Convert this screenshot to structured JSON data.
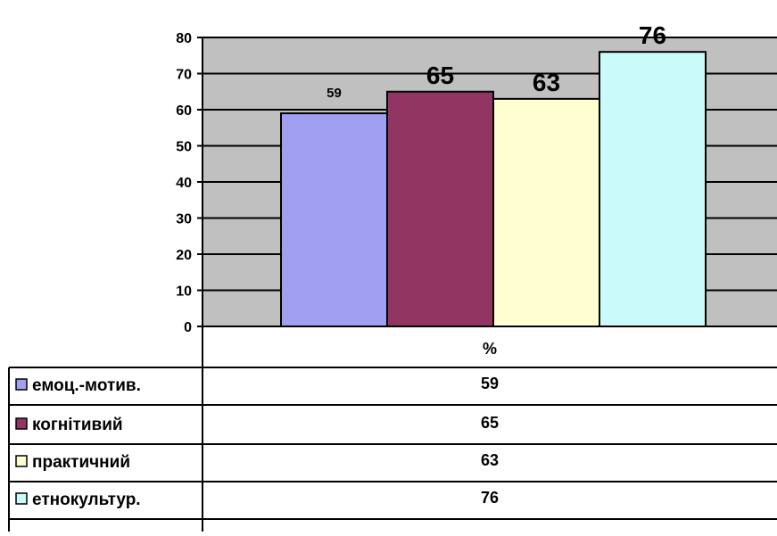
{
  "chart_data": {
    "type": "bar",
    "categories": [
      "%"
    ],
    "series": [
      {
        "name": "емоц.-мотив.",
        "values": [
          59
        ],
        "color": "#A09FF0"
      },
      {
        "name": "когнітивий",
        "values": [
          65
        ],
        "color": "#923562"
      },
      {
        "name": "практичний",
        "values": [
          63
        ],
        "color": "#FFFFD2"
      },
      {
        "name": "етнокультур.",
        "values": [
          76
        ],
        "color": "#CBFAFA"
      }
    ],
    "title": "",
    "xlabel": "",
    "ylabel": "",
    "ylim": [
      0,
      80
    ],
    "yticks": [
      0,
      10,
      20,
      30,
      40,
      50,
      60,
      70,
      80
    ],
    "grid": true,
    "plot_background": "#C0C0C0",
    "data_labels": [
      "59",
      "65",
      "63",
      "76"
    ],
    "data_table": {
      "header": "%",
      "rows": [
        {
          "label": "емоц.-мотив.",
          "value": "59"
        },
        {
          "label": "когнітивий",
          "value": "65"
        },
        {
          "label": "практичний",
          "value": "63"
        },
        {
          "label": "етнокультур.",
          "value": "76"
        }
      ]
    }
  }
}
